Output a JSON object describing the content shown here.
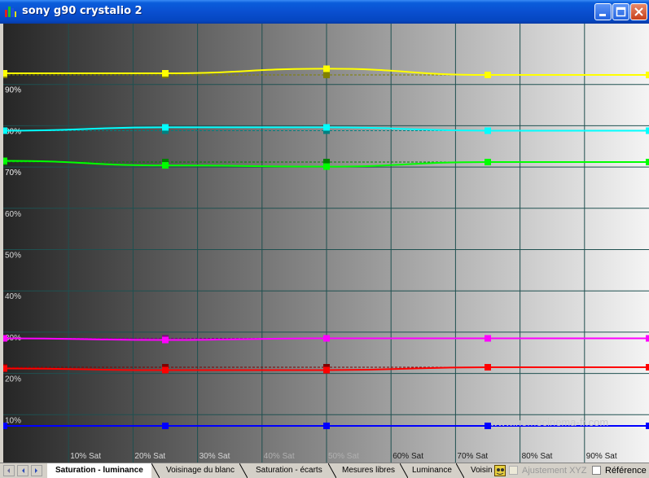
{
  "window": {
    "title": "sony g90 crystalio 2"
  },
  "tabs": [
    {
      "label": "Saturation - luminance",
      "active": true
    },
    {
      "label": "Voisinage du blanc",
      "active": false
    },
    {
      "label": "Saturation - écarts",
      "active": false
    },
    {
      "label": "Mesures libres",
      "active": false
    },
    {
      "label": "Luminance",
      "active": false
    },
    {
      "label": "Voisin",
      "active": false
    }
  ],
  "options": {
    "ajustement_label": "Ajustement XYZ",
    "reference_label": "Référence"
  },
  "watermark": "www.homecinema-fr.com",
  "chart_data": {
    "type": "line",
    "title": "",
    "xlabel": "",
    "ylabel": "",
    "x_ticks": [
      "10% Sat",
      "20% Sat",
      "30% Sat",
      "40% Sat",
      "50% Sat",
      "60% Sat",
      "70% Sat",
      "80% Sat",
      "90% Sat"
    ],
    "y_ticks": [
      "10%",
      "20%",
      "30%",
      "40%",
      "50%",
      "60%",
      "70%",
      "80%",
      "90%"
    ],
    "xlim": [
      0,
      100
    ],
    "ylim": [
      0,
      100
    ],
    "grid": true,
    "background": "grayscale gradient dark-to-light",
    "x": [
      0,
      25,
      50,
      75,
      100
    ],
    "series": [
      {
        "color_name": "yellow",
        "color": "#ffff00",
        "marker": "#ffff00",
        "ref_marker": "#808000",
        "values": [
          92.7,
          92.7,
          93.8,
          92.3,
          92.3
        ],
        "reference": [
          92.3,
          92.3,
          92.3,
          92.3,
          92.3
        ]
      },
      {
        "color_name": "cyan",
        "color": "#00ffff",
        "marker": "#00ffff",
        "ref_marker": "#008080",
        "values": [
          78.8,
          79.6,
          79.6,
          78.8,
          78.8
        ],
        "reference": [
          78.8,
          78.8,
          78.8,
          78.8,
          78.8
        ]
      },
      {
        "color_name": "green",
        "color": "#00ff00",
        "marker": "#00ff00",
        "ref_marker": "#008000",
        "values": [
          71.5,
          70.4,
          70.1,
          71.2,
          71.2
        ],
        "reference": [
          71.2,
          71.2,
          71.2,
          71.2,
          71.2
        ]
      },
      {
        "color_name": "magenta",
        "color": "#ff00ff",
        "marker": "#ff00ff",
        "ref_marker": "#800080",
        "values": [
          28.5,
          28.1,
          28.5,
          28.5,
          28.5
        ],
        "reference": [
          28.5,
          28.5,
          28.5,
          28.5,
          28.5
        ]
      },
      {
        "color_name": "red",
        "color": "#ff0000",
        "marker": "#ff0000",
        "ref_marker": "#800000",
        "values": [
          21.2,
          20.8,
          20.8,
          21.5,
          21.5
        ],
        "reference": [
          21.5,
          21.5,
          21.5,
          21.5,
          21.5
        ]
      },
      {
        "color_name": "blue",
        "color": "#0000ff",
        "marker": "#0000ff",
        "ref_marker": "#000080",
        "values": [
          7.3,
          7.3,
          7.3,
          7.3,
          7.3
        ],
        "reference": [
          7.3,
          7.3,
          7.3,
          7.3,
          7.3
        ]
      }
    ]
  }
}
